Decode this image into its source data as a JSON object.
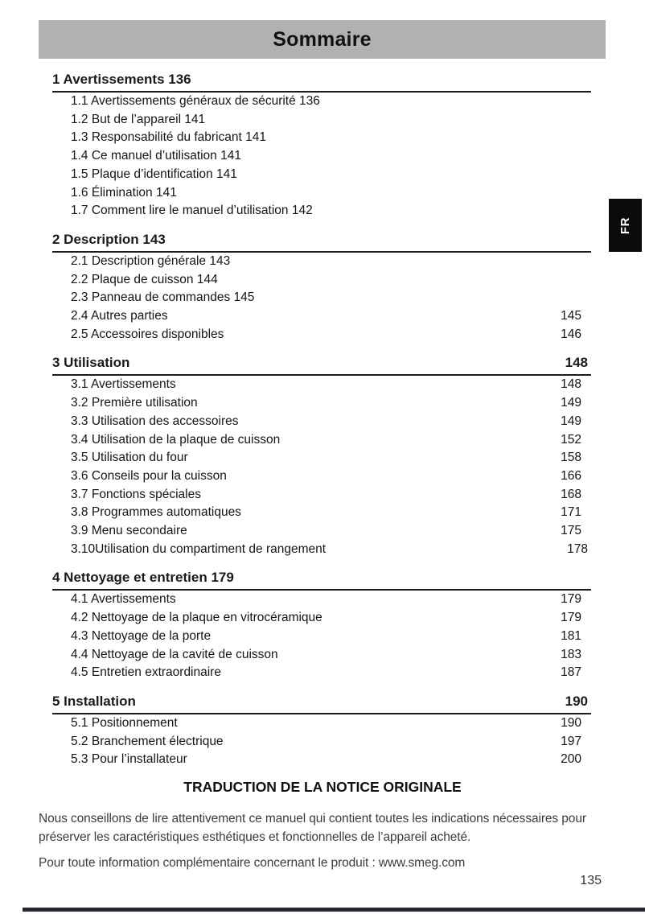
{
  "header": {
    "title": "Sommaire",
    "language_tab": "FR"
  },
  "toc": {
    "sections": [
      {
        "title": "1 Avertissements 136",
        "page": "",
        "items": [
          {
            "label": "1.1 Avertissements généraux de sécurité 136",
            "page": ""
          },
          {
            "label": "1.2 But de l’appareil 141",
            "page": ""
          },
          {
            "label": "1.3 Responsabilité du fabricant 141",
            "page": ""
          },
          {
            "label": "1.4 Ce manuel d’utilisation 141",
            "page": ""
          },
          {
            "label": "1.5 Plaque d’identification 141",
            "page": ""
          },
          {
            "label": "1.6 Élimination 141",
            "page": ""
          },
          {
            "label": "1.7 Comment lire le manuel d’utilisation 142",
            "page": ""
          }
        ]
      },
      {
        "title": "2 Description 143",
        "page": "",
        "items": [
          {
            "label": "2.1 Description générale 143",
            "page": ""
          },
          {
            "label": "2.2 Plaque de cuisson 144",
            "page": ""
          },
          {
            "label": "2.3 Panneau de commandes 145",
            "page": ""
          },
          {
            "label": "2.4 Autres parties",
            "page": "145"
          },
          {
            "label": "2.5 Accessoires disponibles",
            "page": "146"
          }
        ]
      },
      {
        "title": "3 Utilisation",
        "page": "148",
        "items": [
          {
            "label": "3.1 Avertissements",
            "page": "148"
          },
          {
            "label": "3.2 Première utilisation",
            "page": "149"
          },
          {
            "label": "3.3 Utilisation des accessoires",
            "page": "149"
          },
          {
            "label": "3.4 Utilisation de la plaque de cuisson",
            "page": "152"
          },
          {
            "label": "3.5 Utilisation du four",
            "page": "158"
          },
          {
            "label": "3.6 Conseils pour la cuisson",
            "page": "166"
          },
          {
            "label": "3.7 Fonctions spéciales",
            "page": "168"
          },
          {
            "label": "3.8 Programmes automatiques",
            "page": "171"
          },
          {
            "label": "3.9 Menu secondaire",
            "page": "175"
          },
          {
            "label": "3.10Utilisation du compartiment de rangement",
            "page": "178",
            "page_shift": true
          }
        ]
      },
      {
        "title": "4 Nettoyage et entretien 179",
        "page": "",
        "items": [
          {
            "label": "4.1 Avertissements",
            "page": "179"
          },
          {
            "label": "4.2 Nettoyage de la plaque en vitrocéramique",
            "page": "179"
          },
          {
            "label": "4.3 Nettoyage de la porte",
            "page": "181"
          },
          {
            "label": "4.4 Nettoyage de la cavité de cuisson",
            "page": "183"
          },
          {
            "label": "4.5 Entretien extraordinaire",
            "page": "187"
          }
        ]
      },
      {
        "title": "5 Installation",
        "page": "190",
        "items": [
          {
            "label": "5.1 Positionnement",
            "page": "190"
          },
          {
            "label": "5.2 Branchement électrique",
            "page": "197"
          },
          {
            "label": "5.3 Pour l’installateur",
            "page": "200"
          }
        ]
      }
    ]
  },
  "footer": {
    "heading": "TRADUCTION DE LA NOTICE ORIGINALE",
    "paragraph1": "Nous conseillons de lire attentivement ce manuel qui contient toutes les indications nécessaires pour préserver les caractéristiques esthétiques et fonctionnelles de l’appareil acheté.",
    "paragraph2": "Pour toute information complémentaire concernant le produit : www.smeg.com",
    "page_number": "135"
  },
  "colors": {
    "band_gray": "#b1b1b1",
    "tab_black": "#0b0b0b",
    "bottom_bar": "#232734",
    "text": "#1a1a1a"
  }
}
